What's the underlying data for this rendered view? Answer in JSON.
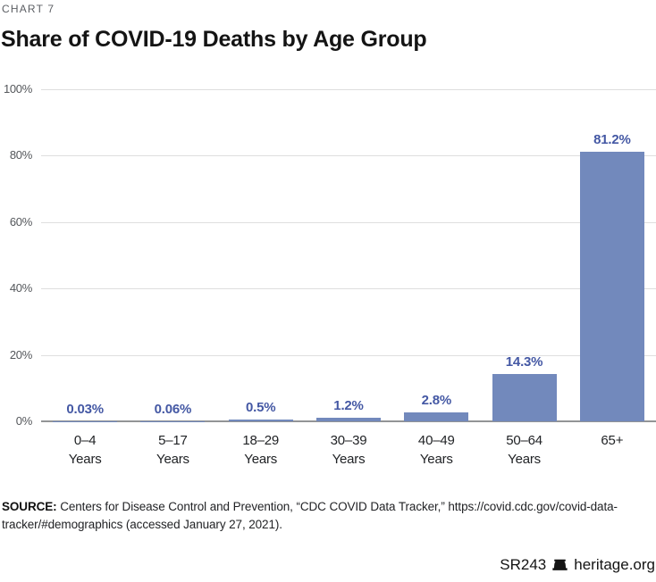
{
  "kicker": "CHART 7",
  "title": "Share of COVID-19 Deaths by Age Group",
  "chart_data": {
    "type": "bar",
    "title": "Share of COVID-19 Deaths by Age Group",
    "categories": [
      "0–4 Years",
      "5–17 Years",
      "18–29 Years",
      "30–39 Years",
      "40–49 Years",
      "50–64 Years",
      "65+"
    ],
    "category_lines": [
      [
        "0–4",
        "Years"
      ],
      [
        "5–17",
        "Years"
      ],
      [
        "18–29",
        "Years"
      ],
      [
        "30–39",
        "Years"
      ],
      [
        "40–49",
        "Years"
      ],
      [
        "50–64",
        "Years"
      ],
      [
        "65+"
      ]
    ],
    "values": [
      0.03,
      0.06,
      0.5,
      1.2,
      2.8,
      14.3,
      81.2
    ],
    "value_labels": [
      "0.03%",
      "0.06%",
      "0.5%",
      "1.2%",
      "2.8%",
      "14.3%",
      "81.2%"
    ],
    "y_ticks": [
      "0%",
      "20%",
      "40%",
      "60%",
      "80%",
      "100%"
    ],
    "y_tick_values": [
      0,
      20,
      40,
      60,
      80,
      100
    ],
    "ylim": [
      0,
      100
    ],
    "xlabel": "",
    "ylabel": "",
    "grid": true,
    "legend": false,
    "bar_color": "#7289BC",
    "value_label_color": "#4458A4"
  },
  "source": {
    "label": "SOURCE:",
    "text": " Centers for Disease Control and Prevention, “CDC COVID Data Tracker,” https://covid.cdc.gov/covid-data-tracker/#demographics (accessed January 27, 2021)."
  },
  "footer": {
    "report_id": "SR243",
    "site": "heritage.org",
    "bell_icon": "liberty-bell-icon"
  }
}
